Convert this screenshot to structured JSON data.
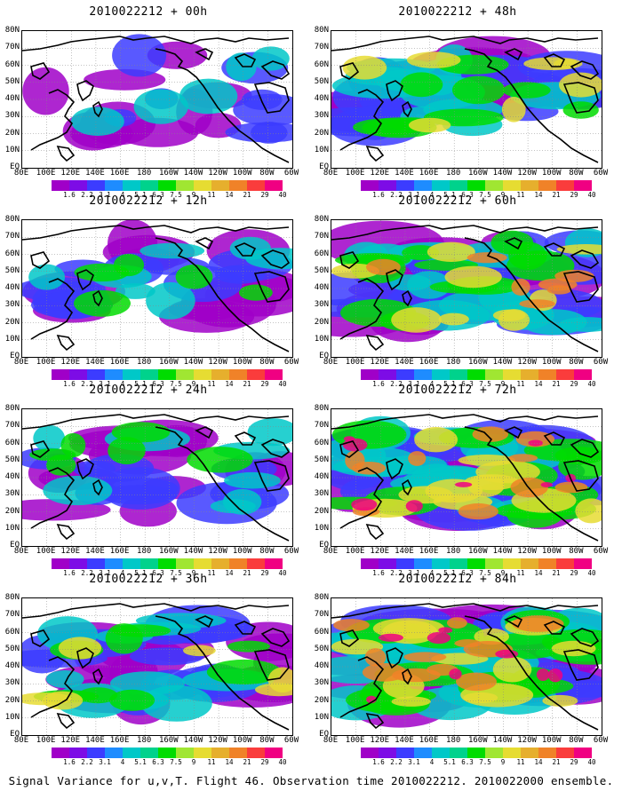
{
  "panels": [
    {
      "title": "2010022212 + 00h",
      "intensity": 0.5
    },
    {
      "title": "2010022212 + 48h",
      "intensity": 1.3
    },
    {
      "title": "2010022212 + 12h",
      "intensity": 0.7
    },
    {
      "title": "2010022212 + 60h",
      "intensity": 1.5
    },
    {
      "title": "2010022212 + 24h",
      "intensity": 0.9
    },
    {
      "title": "2010022212 + 72h",
      "intensity": 1.8
    },
    {
      "title": "2010022212 + 36h",
      "intensity": 1.1
    },
    {
      "title": "2010022212 + 84h",
      "intensity": 2.1
    }
  ],
  "lat_labels": [
    "80N",
    "70N",
    "60N",
    "50N",
    "40N",
    "30N",
    "20N",
    "10N",
    "EQ"
  ],
  "lon_labels": [
    "80E",
    "100E",
    "120E",
    "140E",
    "160E",
    "180",
    "160W",
    "140W",
    "120W",
    "100W",
    "80W",
    "60W"
  ],
  "colorbar": {
    "colors": [
      "#a000c8",
      "#7d0ce6",
      "#3c3cff",
      "#1e8cff",
      "#00c8c8",
      "#00d28c",
      "#00dc00",
      "#a0e632",
      "#e6dc32",
      "#e6af2d",
      "#f08228",
      "#fa3c3c",
      "#f00082"
    ],
    "labels": [
      "1.6",
      "2.2",
      "3.1",
      "4",
      "5.1",
      "6.3",
      "7.5",
      "9",
      "11",
      "14",
      "21",
      "29",
      "40"
    ]
  },
  "footer": "Signal Variance for u,v,T. Flight 46. Observation time 2010022212. 2010022000 ensemble."
}
